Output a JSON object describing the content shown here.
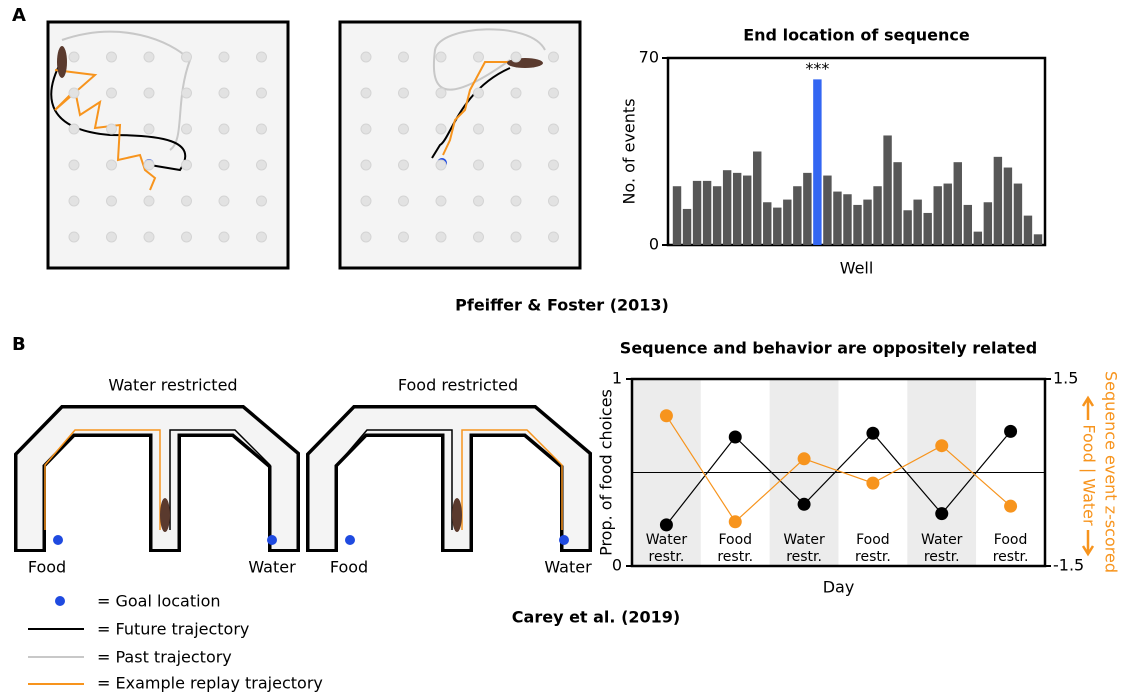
{
  "panel_labels": [
    "A",
    "B"
  ],
  "captions": [
    "Pfeiffer & Foster (2013)",
    "Carey et al. (2019)"
  ],
  "mazes": [
    {
      "title": "Water restricted",
      "left_label": "Food",
      "right_label": "Water"
    },
    {
      "title": "Food restricted",
      "left_label": "Food",
      "right_label": "Water"
    }
  ],
  "legend": [
    "= Goal location",
    "= Future trajectory",
    "= Past trajectory",
    "= Example replay trajectory"
  ],
  "chart_data": [
    {
      "type": "bar",
      "title": "End location of sequence",
      "x_label": "Well",
      "y_label": "No. of events",
      "annotation": "***",
      "values": [
        22,
        13.5,
        24,
        24,
        22,
        28,
        27,
        26,
        35,
        16,
        14,
        17,
        22,
        27,
        62,
        26,
        20,
        19,
        15,
        17,
        22,
        41,
        31,
        13,
        17,
        12,
        22,
        23,
        31,
        15,
        5,
        16,
        33,
        29,
        23,
        11,
        4
      ],
      "colors": [
        "#575757",
        "#575757",
        "#575757",
        "#575757",
        "#575757",
        "#575757",
        "#575757",
        "#575757",
        "#575757",
        "#575757",
        "#575757",
        "#575757",
        "#575757",
        "#575757",
        "#3366f2",
        "#575757",
        "#575757",
        "#575757",
        "#575757",
        "#575757",
        "#575757",
        "#575757",
        "#575757",
        "#575757",
        "#575757",
        "#575757",
        "#575757",
        "#575757",
        "#575757",
        "#575757",
        "#575757",
        "#575757",
        "#575757",
        "#575757",
        "#575757",
        "#575757",
        "#575757"
      ],
      "ylim": [
        0,
        70
      ],
      "yticks": [
        0,
        70
      ]
    },
    {
      "type": "line",
      "title": "Sequence and behavior are oppositely related",
      "x_label": "Day",
      "y_label": "Prop. of food choices",
      "y2_label": "Sequence event z-scored",
      "y2_sublabel": "Food | Water",
      "categories": [
        "Water restr.",
        "Food restr.",
        "Water restr.",
        "Food restr.",
        "Water restr.",
        "Food restr."
      ],
      "band_colors": [
        "#ececec",
        "#ffffff",
        "#ececec",
        "#ffffff",
        "#ececec",
        "#ffffff"
      ],
      "series": [
        {
          "color": "#000000",
          "values": [
            0.22,
            0.69,
            0.33,
            0.71,
            0.28,
            0.72
          ]
        },
        {
          "color": "#f7941d",
          "axis": "y2",
          "values": [
            0.91,
            -0.79,
            0.22,
            -0.17,
            0.43,
            -0.54
          ]
        }
      ],
      "hline": 0.5,
      "ylim": [
        0,
        1
      ],
      "yticks": [
        0,
        1
      ],
      "y2lim": [
        -1.5,
        1.5
      ],
      "y2ticks": [
        -1.5,
        1.5
      ]
    }
  ]
}
